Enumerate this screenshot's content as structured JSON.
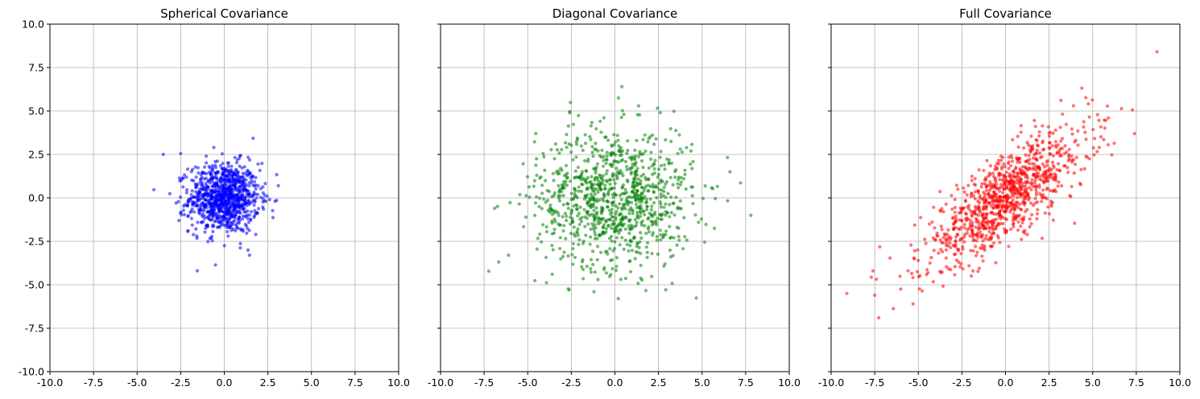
{
  "chart_data": [
    {
      "type": "scatter",
      "title": "Spherical Covariance",
      "xlim": [
        -10,
        10
      ],
      "ylim": [
        -10,
        10
      ],
      "xticks": [
        "-10.0",
        "-7.5",
        "-5.0",
        "-2.5",
        "0.0",
        "2.5",
        "5.0",
        "7.5",
        "10.0"
      ],
      "yticks": [
        "10.0",
        "7.5",
        "5.0",
        "2.5",
        "0.0",
        "-2.5",
        "-5.0",
        "-7.5",
        "-10.0"
      ],
      "grid": true,
      "color": "#0000ff",
      "n_points": 1000,
      "sigma": [
        1.0,
        1.0
      ],
      "correlation": 0.0,
      "extremes": [
        [
          -3.5,
          2.5
        ],
        [
          -2.5,
          2.55
        ],
        [
          3.1,
          0.7
        ],
        [
          1.45,
          -3.3
        ],
        [
          -0.6,
          2.9
        ],
        [
          -2.6,
          -1.3
        ],
        [
          2.6,
          -0.1
        ]
      ]
    },
    {
      "type": "scatter",
      "title": "Diagonal Covariance",
      "xlim": [
        -10,
        10
      ],
      "ylim": [
        -10,
        10
      ],
      "xticks": [
        "-10.0",
        "-7.5",
        "-5.0",
        "-2.5",
        "0.0",
        "2.5",
        "5.0",
        "7.5",
        "10.0"
      ],
      "yticks": [
        "",
        "",
        "",
        "",
        "",
        "",
        "",
        "",
        ""
      ],
      "grid": true,
      "color": "#008000",
      "n_points": 1000,
      "sigma": [
        2.25,
        2.0
      ],
      "correlation": 0.0,
      "extremes": [
        [
          7.8,
          -1.0
        ],
        [
          6.6,
          1.5
        ],
        [
          0.4,
          6.4
        ],
        [
          -6.9,
          -0.6
        ],
        [
          -6.1,
          -3.3
        ],
        [
          -1.2,
          -5.4
        ],
        [
          -2.6,
          4.9
        ],
        [
          2.6,
          4.9
        ]
      ]
    },
    {
      "type": "scatter",
      "title": "Full Covariance",
      "xlim": [
        -10,
        10
      ],
      "ylim": [
        -10,
        10
      ],
      "xticks": [
        "-10.0",
        "-7.5",
        "-5.0",
        "-2.5",
        "0.0",
        "2.5",
        "5.0",
        "7.5",
        "10.0"
      ],
      "yticks": [
        "",
        "",
        "",
        "",
        "",
        "",
        "",
        "",
        ""
      ],
      "grid": true,
      "color": "#ff0000",
      "n_points": 1000,
      "sigma": [
        2.4,
        2.0
      ],
      "correlation": 0.8,
      "extremes": [
        [
          -9.1,
          -5.5
        ],
        [
          7.4,
          3.7
        ],
        [
          -5.3,
          -6.1
        ],
        [
          3.9,
          5.3
        ],
        [
          -7.5,
          -5.6
        ],
        [
          5.9,
          4.6
        ],
        [
          -7.6,
          -4.2
        ]
      ]
    }
  ]
}
